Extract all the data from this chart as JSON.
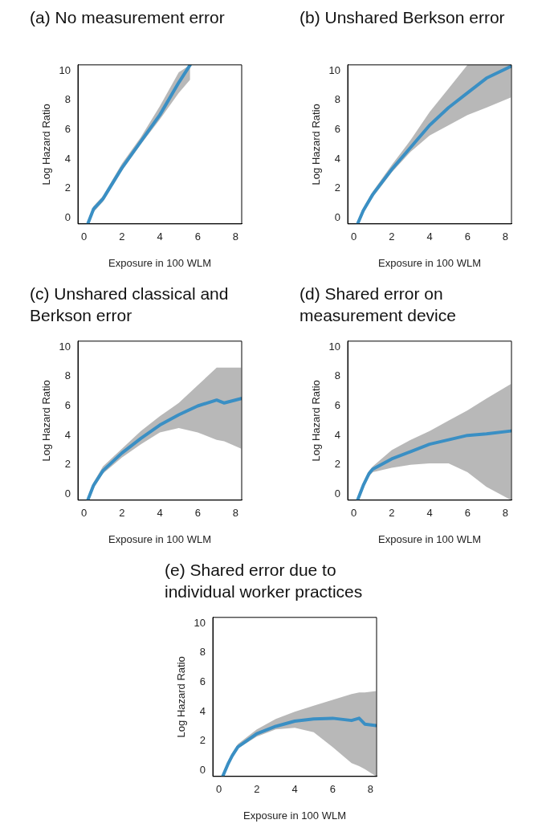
{
  "chart_data": [
    {
      "type": "line",
      "title": "(a) No measurement error",
      "xlabel": "Exposure in 100 WLM",
      "ylabel": "Log Hazard Ratio",
      "xlim": [
        -0.32,
        8.32
      ],
      "ylim": [
        -0.4,
        10.4
      ],
      "xticks": [
        0,
        2,
        4,
        6,
        8
      ],
      "yticks": [
        0,
        2,
        4,
        6,
        8,
        10
      ],
      "grid": false,
      "legend": false,
      "marker": "none",
      "line_style": "solid",
      "series": [
        {
          "color": "#3a8fc4",
          "x": [
            0.2,
            0.5,
            1,
            2,
            3,
            4,
            5,
            5.6
          ],
          "values": [
            -0.4,
            0.6,
            1.3,
            3.4,
            5.2,
            7.0,
            9.2,
            10.4
          ],
          "lower": [
            -0.4,
            0.4,
            1.1,
            3.2,
            5.0,
            6.7,
            8.5,
            9.4
          ],
          "upper": [
            -0.2,
            0.8,
            1.5,
            3.7,
            5.5,
            7.6,
            9.9,
            10.4
          ]
        }
      ]
    },
    {
      "type": "line",
      "title": "(b) Unshared Berkson error",
      "xlabel": "Exposure in 100 WLM",
      "ylabel": "Log Hazard Ratio",
      "xlim": [
        -0.32,
        8.32
      ],
      "ylim": [
        -0.4,
        10.4
      ],
      "xticks": [
        0,
        2,
        4,
        6,
        8
      ],
      "yticks": [
        0,
        2,
        4,
        6,
        8,
        10
      ],
      "grid": false,
      "legend": false,
      "marker": "none",
      "line_style": "solid",
      "series": [
        {
          "color": "#3a8fc4",
          "x": [
            0.2,
            0.5,
            1,
            2,
            3,
            4,
            5,
            6,
            7,
            8.3
          ],
          "values": [
            -0.4,
            0.5,
            1.6,
            3.3,
            4.8,
            6.3,
            7.5,
            8.5,
            9.5,
            10.3
          ],
          "lower": [
            -0.4,
            0.4,
            1.4,
            3.1,
            4.5,
            5.6,
            6.3,
            7.0,
            7.5,
            8.2
          ],
          "upper": [
            -0.2,
            0.7,
            1.8,
            3.6,
            5.3,
            7.2,
            8.8,
            10.4,
            10.4,
            10.4
          ]
        }
      ]
    },
    {
      "type": "line",
      "title": "(c) Unshared classical and Berkson error",
      "xlabel": "Exposure in 100 WLM",
      "ylabel": "Log Hazard Ratio",
      "xlim": [
        -0.32,
        8.32
      ],
      "ylim": [
        -0.4,
        10.4
      ],
      "xticks": [
        0,
        2,
        4,
        6,
        8
      ],
      "yticks": [
        0,
        2,
        4,
        6,
        8,
        10
      ],
      "grid": false,
      "legend": false,
      "marker": "none",
      "line_style": "solid",
      "series": [
        {
          "color": "#3a8fc4",
          "x": [
            0.2,
            0.5,
            1,
            2,
            3,
            4,
            5,
            6,
            7,
            7.4,
            8.3
          ],
          "values": [
            -0.4,
            0.6,
            1.6,
            2.8,
            3.8,
            4.7,
            5.4,
            6.0,
            6.4,
            6.2,
            6.5
          ],
          "lower": [
            -0.4,
            0.4,
            1.4,
            2.5,
            3.4,
            4.2,
            4.5,
            4.2,
            3.7,
            3.6,
            3.1
          ],
          "upper": [
            -0.2,
            0.8,
            1.9,
            3.1,
            4.3,
            5.3,
            6.2,
            7.4,
            8.6,
            8.6,
            8.6
          ]
        }
      ]
    },
    {
      "type": "line",
      "title": "(d) Shared error on measurement device",
      "xlabel": "Exposure in 100 WLM",
      "ylabel": "Log Hazard Ratio",
      "xlim": [
        -0.32,
        8.32
      ],
      "ylim": [
        -0.4,
        10.4
      ],
      "xticks": [
        0,
        2,
        4,
        6,
        8
      ],
      "yticks": [
        0,
        2,
        4,
        6,
        8,
        10
      ],
      "grid": false,
      "legend": false,
      "marker": "none",
      "line_style": "solid",
      "series": [
        {
          "color": "#3a8fc4",
          "x": [
            0.2,
            0.5,
            0.8,
            1,
            2,
            3,
            4,
            5,
            6,
            7,
            8.3
          ],
          "values": [
            -0.4,
            0.6,
            1.4,
            1.7,
            2.4,
            2.9,
            3.4,
            3.7,
            4.0,
            4.1,
            4.3
          ],
          "lower": [
            -0.4,
            0.4,
            1.2,
            1.5,
            1.8,
            2.0,
            2.1,
            2.1,
            1.5,
            0.5,
            -0.4
          ],
          "upper": [
            -0.2,
            0.8,
            1.6,
            1.9,
            3.0,
            3.7,
            4.3,
            5.0,
            5.7,
            6.5,
            7.5
          ]
        }
      ]
    },
    {
      "type": "line",
      "title": "(e) Shared error due to individual worker practices",
      "xlabel": "Exposure in 100 WLM",
      "ylabel": "Log Hazard Ratio",
      "xlim": [
        -0.32,
        8.32
      ],
      "ylim": [
        -0.4,
        10.4
      ],
      "xticks": [
        0,
        2,
        4,
        6,
        8
      ],
      "yticks": [
        0,
        2,
        4,
        6,
        8,
        10
      ],
      "grid": false,
      "legend": false,
      "marker": "none",
      "line_style": "solid",
      "series": [
        {
          "color": "#3a8fc4",
          "x": [
            0.2,
            0.5,
            0.7,
            1,
            2,
            3,
            4,
            5,
            6,
            7,
            7.4,
            7.7,
            8.3
          ],
          "values": [
            -0.4,
            0.5,
            1.0,
            1.6,
            2.5,
            3.0,
            3.35,
            3.5,
            3.55,
            3.4,
            3.55,
            3.15,
            3.05
          ],
          "lower": [
            -0.4,
            0.3,
            0.8,
            1.5,
            2.3,
            2.8,
            2.9,
            2.6,
            1.6,
            0.5,
            0.3,
            0.1,
            -0.4
          ],
          "upper": [
            -0.2,
            0.7,
            1.2,
            1.8,
            2.8,
            3.5,
            4.0,
            4.4,
            4.8,
            5.2,
            5.3,
            5.3,
            5.4
          ]
        }
      ]
    }
  ]
}
